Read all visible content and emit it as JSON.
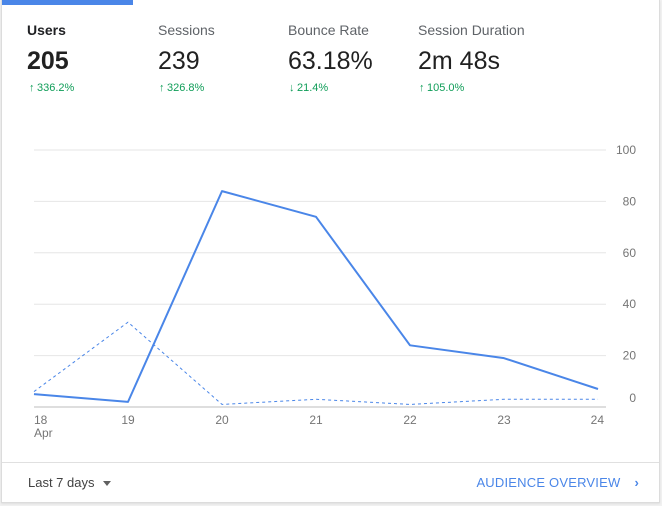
{
  "metrics": [
    {
      "label": "Users",
      "value": "205",
      "direction": "up",
      "change": "336.2%"
    },
    {
      "label": "Sessions",
      "value": "239",
      "direction": "up",
      "change": "326.8%"
    },
    {
      "label": "Bounce Rate",
      "value": "63.18%",
      "direction": "down",
      "change": "21.4%"
    },
    {
      "label": "Session Duration",
      "value": "2m 48s",
      "direction": "up",
      "change": "105.0%"
    }
  ],
  "colors": {
    "accent": "#4a86e8",
    "positive": "#0f9d58",
    "grid": "#e6e6e6"
  },
  "chart_data": {
    "type": "line",
    "x": [
      "18",
      "19",
      "20",
      "21",
      "22",
      "23",
      "24"
    ],
    "x_sublabel": "Apr",
    "ylim": [
      0,
      100
    ],
    "y_ticks": [
      "100",
      "80",
      "60",
      "40",
      "20",
      "0"
    ],
    "axis_side": "right",
    "grid": true,
    "series": [
      {
        "style": "solid",
        "values": [
          5,
          2,
          84,
          74,
          24,
          19,
          7
        ]
      },
      {
        "style": "dashed",
        "values": [
          6,
          33,
          1,
          3,
          1,
          3,
          3
        ]
      }
    ]
  },
  "footer": {
    "range_label": "Last 7 days",
    "overview_label": "AUDIENCE OVERVIEW",
    "overview_icon": "chevron-right-icon"
  }
}
